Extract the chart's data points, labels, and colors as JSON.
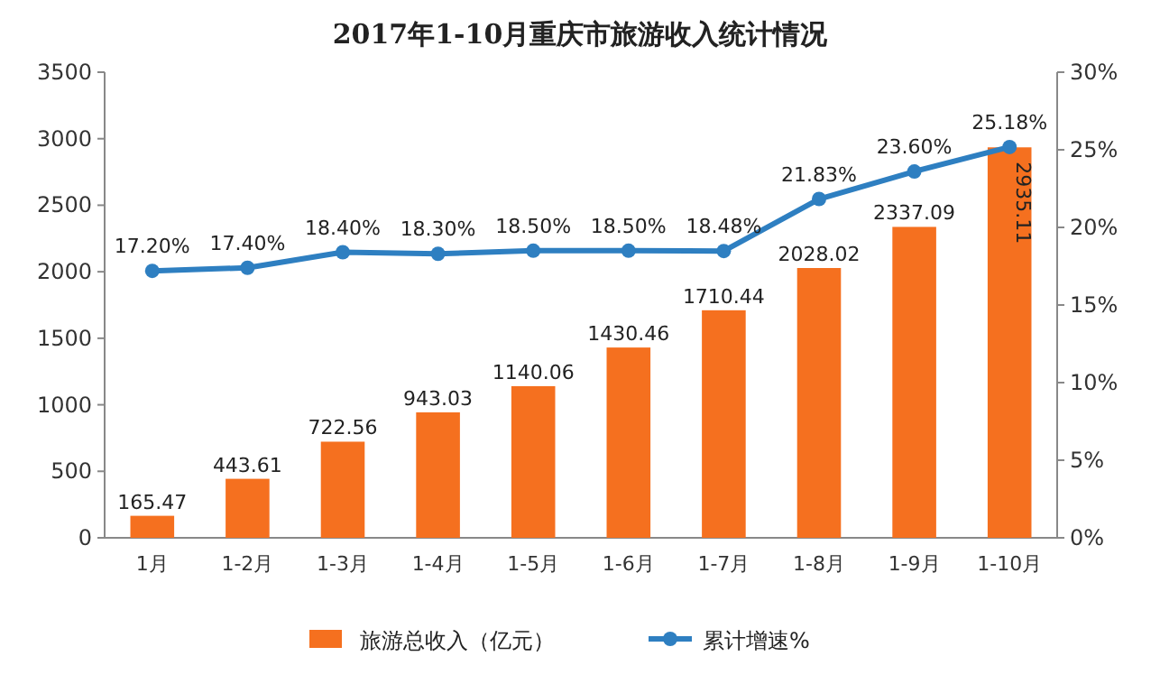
{
  "chart_data": {
    "type": "bar",
    "title": "2017年1-10月重庆市旅游收入统计情况",
    "categories": [
      "1月",
      "1-2月",
      "1-3月",
      "1-4月",
      "1-5月",
      "1-6月",
      "1-7月",
      "1-8月",
      "1-9月",
      "1-10月"
    ],
    "series": [
      {
        "name": "旅游总收入（亿元）",
        "color": "#f5701f",
        "values": [
          165.47,
          443.61,
          722.56,
          943.03,
          1140.06,
          1430.46,
          1710.44,
          2028.02,
          2337.09,
          2935.11
        ],
        "value_labels": [
          "165.47",
          "443.61",
          "722.56",
          "943.03",
          "1140.06",
          "1430.46",
          "1710.44",
          "2028.02",
          "2337.09",
          "2935.11"
        ]
      },
      {
        "name": "累计增速%",
        "type": "line",
        "axis": "y2",
        "marker": "circle",
        "color": "#2e7fc1",
        "values": [
          17.2,
          17.4,
          18.4,
          18.3,
          18.5,
          18.5,
          18.48,
          21.83,
          23.6,
          25.18
        ],
        "value_labels": [
          "17.20%",
          "17.40%",
          "18.40%",
          "18.30%",
          "18.50%",
          "18.50%",
          "18.48%",
          "21.83%",
          "23.60%",
          "25.18%"
        ]
      }
    ],
    "ylim": [
      0,
      3500
    ],
    "yticks": [
      0,
      500,
      1000,
      1500,
      2000,
      2500,
      3000,
      3500
    ],
    "y2lim": [
      0,
      30
    ],
    "y2ticks": [
      {
        "value": 0,
        "label": "0%"
      },
      {
        "value": 5,
        "label": "5%"
      },
      {
        "value": 10,
        "label": "10%"
      },
      {
        "value": 15,
        "label": "15%"
      },
      {
        "value": 20,
        "label": "20%"
      },
      {
        "value": 25,
        "label": "25%"
      },
      {
        "value": 30,
        "label": "30%"
      }
    ],
    "legend": "bottom"
  }
}
